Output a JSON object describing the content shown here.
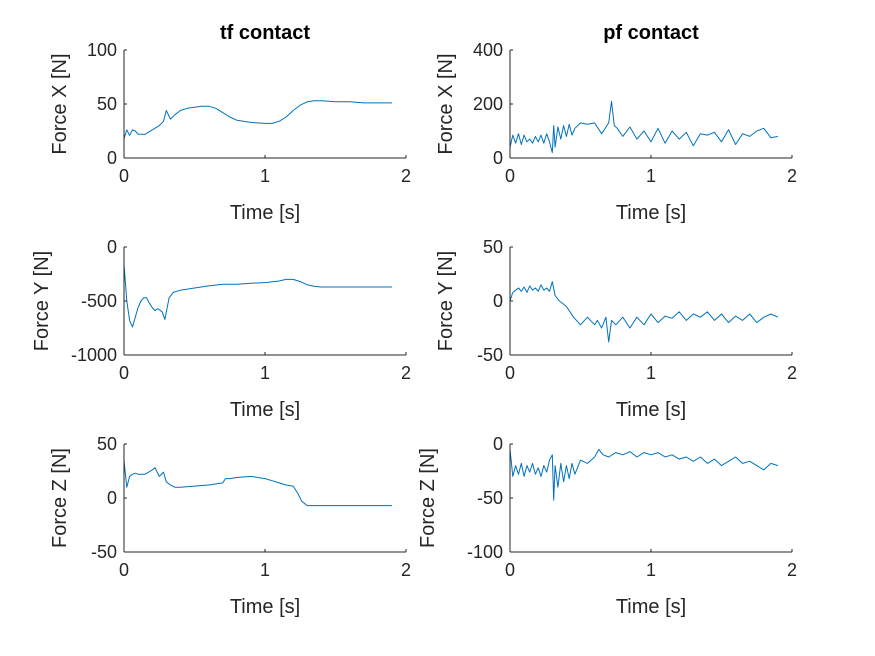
{
  "figure": {
    "background": "#ffffff",
    "series_color": "#0072BD"
  },
  "chart_data": [
    {
      "type": "line",
      "title": "tf contact",
      "xlabel": "Time [s]",
      "ylabel": "Force X [N]",
      "xlim": [
        0,
        2
      ],
      "ylim": [
        0,
        100
      ],
      "xticks": [
        0,
        1,
        2
      ],
      "yticks": [
        0,
        50,
        100
      ],
      "xticklabels": [
        "0",
        "1",
        "2"
      ],
      "yticklabels": [
        "0",
        "50",
        "100"
      ],
      "series": [
        {
          "x": [
            0,
            0.02,
            0.04,
            0.06,
            0.08,
            0.1,
            0.15,
            0.2,
            0.25,
            0.28,
            0.3,
            0.33,
            0.36,
            0.4,
            0.45,
            0.5,
            0.55,
            0.6,
            0.65,
            0.7,
            0.75,
            0.8,
            0.9,
            1.0,
            1.05,
            1.1,
            1.15,
            1.2,
            1.25,
            1.3,
            1.35,
            1.4,
            1.5,
            1.6,
            1.7,
            1.8,
            1.9
          ],
          "y": [
            18,
            26,
            21,
            26,
            25,
            22,
            22,
            26,
            30,
            34,
            44,
            36,
            40,
            44,
            46,
            47,
            48,
            48,
            46,
            42,
            38,
            35,
            33,
            32,
            32,
            34,
            38,
            44,
            49,
            52,
            53,
            53,
            52,
            52,
            51,
            51,
            51
          ]
        }
      ]
    },
    {
      "type": "line",
      "title": "pf contact",
      "xlabel": "Time [s]",
      "ylabel": "Force X [N]",
      "xlim": [
        0,
        2
      ],
      "ylim": [
        0,
        400
      ],
      "xticks": [
        0,
        1,
        2
      ],
      "yticks": [
        0,
        200,
        400
      ],
      "xticklabels": [
        "0",
        "1",
        "2"
      ],
      "yticklabels": [
        "0",
        "200",
        "400"
      ],
      "series": [
        {
          "x": [
            0,
            0.02,
            0.04,
            0.06,
            0.08,
            0.1,
            0.12,
            0.14,
            0.16,
            0.18,
            0.2,
            0.22,
            0.24,
            0.26,
            0.28,
            0.3,
            0.31,
            0.32,
            0.34,
            0.36,
            0.38,
            0.4,
            0.42,
            0.44,
            0.46,
            0.5,
            0.55,
            0.6,
            0.65,
            0.7,
            0.72,
            0.74,
            0.76,
            0.8,
            0.85,
            0.9,
            0.95,
            1.0,
            1.05,
            1.1,
            1.15,
            1.2,
            1.25,
            1.3,
            1.35,
            1.4,
            1.45,
            1.5,
            1.55,
            1.6,
            1.65,
            1.7,
            1.75,
            1.8,
            1.85,
            1.9
          ],
          "y": [
            40,
            85,
            55,
            90,
            50,
            85,
            60,
            70,
            55,
            80,
            60,
            85,
            55,
            90,
            60,
            20,
            120,
            40,
            115,
            70,
            120,
            80,
            125,
            85,
            110,
            130,
            125,
            130,
            90,
            130,
            210,
            120,
            110,
            80,
            115,
            70,
            100,
            60,
            110,
            55,
            100,
            70,
            95,
            45,
            90,
            85,
            95,
            60,
            105,
            50,
            90,
            80,
            100,
            110,
            75,
            80
          ]
        }
      ]
    },
    {
      "type": "line",
      "title": "",
      "xlabel": "Time [s]",
      "ylabel": "Force Y [N]",
      "xlim": [
        0,
        2
      ],
      "ylim": [
        -1000,
        0
      ],
      "xticks": [
        0,
        1,
        2
      ],
      "yticks": [
        -1000,
        -500,
        0
      ],
      "xticklabels": [
        "0",
        "1",
        "2"
      ],
      "yticklabels": [
        "-1000",
        "-500",
        "0"
      ],
      "series": [
        {
          "x": [
            0,
            0.02,
            0.04,
            0.06,
            0.08,
            0.1,
            0.12,
            0.14,
            0.16,
            0.18,
            0.2,
            0.22,
            0.24,
            0.27,
            0.29,
            0.32,
            0.35,
            0.4,
            0.5,
            0.6,
            0.7,
            0.8,
            0.9,
            1.0,
            1.1,
            1.15,
            1.2,
            1.25,
            1.3,
            1.35,
            1.4,
            1.5,
            1.6,
            1.7,
            1.8,
            1.9
          ],
          "y": [
            -160,
            -500,
            -680,
            -740,
            -650,
            -560,
            -500,
            -470,
            -470,
            -520,
            -560,
            -590,
            -570,
            -600,
            -670,
            -470,
            -420,
            -400,
            -380,
            -360,
            -345,
            -345,
            -335,
            -330,
            -315,
            -300,
            -300,
            -320,
            -350,
            -365,
            -370,
            -370,
            -370,
            -370,
            -370,
            -370
          ]
        }
      ]
    },
    {
      "type": "line",
      "title": "",
      "xlabel": "Time [s]",
      "ylabel": "Force Y [N]",
      "xlim": [
        0,
        2
      ],
      "ylim": [
        -50,
        50
      ],
      "xticks": [
        0,
        1,
        2
      ],
      "yticks": [
        -50,
        0,
        50
      ],
      "xticklabels": [
        "0",
        "1",
        "2"
      ],
      "yticklabels": [
        "-50",
        "0",
        "50"
      ],
      "series": [
        {
          "x": [
            0,
            0.02,
            0.04,
            0.06,
            0.08,
            0.1,
            0.12,
            0.14,
            0.16,
            0.18,
            0.2,
            0.22,
            0.24,
            0.26,
            0.28,
            0.3,
            0.32,
            0.35,
            0.4,
            0.45,
            0.5,
            0.55,
            0.6,
            0.62,
            0.65,
            0.68,
            0.7,
            0.72,
            0.75,
            0.8,
            0.85,
            0.9,
            0.95,
            1.0,
            1.05,
            1.1,
            1.15,
            1.2,
            1.25,
            1.3,
            1.35,
            1.4,
            1.45,
            1.5,
            1.55,
            1.6,
            1.65,
            1.7,
            1.75,
            1.8,
            1.85,
            1.9
          ],
          "y": [
            0,
            8,
            10,
            12,
            9,
            13,
            8,
            14,
            10,
            12,
            9,
            15,
            10,
            12,
            9,
            18,
            5,
            0,
            -5,
            -15,
            -22,
            -15,
            -22,
            -18,
            -25,
            -15,
            -38,
            -18,
            -22,
            -15,
            -25,
            -15,
            -22,
            -12,
            -20,
            -14,
            -16,
            -10,
            -18,
            -12,
            -15,
            -10,
            -18,
            -12,
            -20,
            -14,
            -18,
            -12,
            -20,
            -15,
            -12,
            -15
          ]
        }
      ]
    },
    {
      "type": "line",
      "title": "",
      "xlabel": "Time [s]",
      "ylabel": "Force Z [N]",
      "xlim": [
        0,
        2
      ],
      "ylim": [
        -50,
        50
      ],
      "xticks": [
        0,
        1,
        2
      ],
      "yticks": [
        -50,
        0,
        50
      ],
      "xticklabels": [
        "0",
        "1",
        "2"
      ],
      "yticklabels": [
        "-50",
        "0",
        "50"
      ],
      "series": [
        {
          "x": [
            0,
            0.01,
            0.02,
            0.04,
            0.06,
            0.08,
            0.1,
            0.15,
            0.2,
            0.22,
            0.25,
            0.28,
            0.3,
            0.33,
            0.36,
            0.4,
            0.5,
            0.6,
            0.7,
            0.72,
            0.75,
            0.8,
            0.9,
            1.0,
            1.05,
            1.1,
            1.15,
            1.2,
            1.23,
            1.26,
            1.3,
            1.35,
            1.4,
            1.5,
            1.6,
            1.7,
            1.8,
            1.9
          ],
          "y": [
            35,
            22,
            10,
            20,
            22,
            23,
            22,
            22,
            26,
            28,
            20,
            24,
            15,
            12,
            10,
            10,
            11,
            12,
            14,
            18,
            18,
            19,
            20,
            18,
            16,
            14,
            12,
            11,
            5,
            -3,
            -7,
            -7,
            -7,
            -7,
            -7,
            -7,
            -7,
            -7
          ]
        }
      ]
    },
    {
      "type": "line",
      "title": "",
      "xlabel": "Time [s]",
      "ylabel": "Force Z [N]",
      "xlim": [
        0,
        2
      ],
      "ylim": [
        -100,
        0
      ],
      "xticks": [
        0,
        1,
        2
      ],
      "yticks": [
        -100,
        -50,
        0
      ],
      "xticklabels": [
        "0",
        "1",
        "2"
      ],
      "yticklabels": [
        "-100",
        "-50",
        "0"
      ],
      "series": [
        {
          "x": [
            0,
            0.02,
            0.04,
            0.06,
            0.08,
            0.1,
            0.12,
            0.14,
            0.16,
            0.18,
            0.2,
            0.22,
            0.24,
            0.26,
            0.28,
            0.3,
            0.31,
            0.32,
            0.34,
            0.36,
            0.38,
            0.4,
            0.42,
            0.44,
            0.46,
            0.5,
            0.55,
            0.6,
            0.63,
            0.66,
            0.7,
            0.75,
            0.8,
            0.85,
            0.9,
            0.95,
            1.0,
            1.05,
            1.1,
            1.15,
            1.2,
            1.25,
            1.3,
            1.35,
            1.4,
            1.45,
            1.5,
            1.55,
            1.6,
            1.65,
            1.7,
            1.75,
            1.8,
            1.85,
            1.9
          ],
          "y": [
            -5,
            -30,
            -20,
            -28,
            -18,
            -30,
            -20,
            -26,
            -18,
            -28,
            -22,
            -30,
            -20,
            -26,
            -15,
            -10,
            -52,
            -20,
            -40,
            -18,
            -35,
            -20,
            -32,
            -18,
            -28,
            -15,
            -18,
            -12,
            -5,
            -10,
            -12,
            -8,
            -10,
            -7,
            -12,
            -8,
            -10,
            -8,
            -12,
            -10,
            -14,
            -12,
            -16,
            -12,
            -18,
            -14,
            -20,
            -16,
            -12,
            -18,
            -16,
            -20,
            -24,
            -18,
            -20
          ]
        }
      ]
    }
  ]
}
